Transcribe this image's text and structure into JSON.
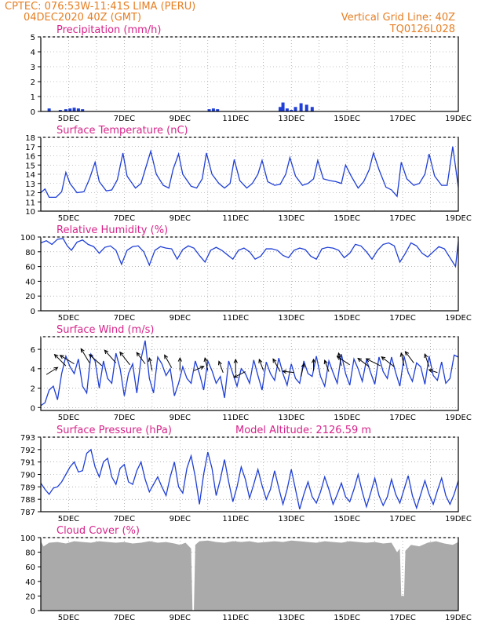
{
  "header": {
    "left_line1": "CPTEC:    076:53W-11:41S    LIMA (PERU)",
    "left_line2": "04DEC2020 40Z (GMT)",
    "right_line1": "Vertical Grid Line: 40Z",
    "right_line2": "TQ0126L028"
  },
  "colors": {
    "line": "#1f3fd6",
    "cloud": "#aaaaaa",
    "header": "#e67e22",
    "title": "#d6248a",
    "grid": "#888888"
  },
  "x_axis": {
    "labels": [
      "5DEC",
      "7DEC",
      "9DEC",
      "11DEC",
      "13DEC",
      "15DEC",
      "17DEC",
      "19DEC"
    ],
    "day_start": 4,
    "day_end": 19
  },
  "panels": [
    {
      "id": "precip",
      "title": "Precipitation (mm/h)",
      "yticks": [
        "0",
        "1",
        "2",
        "3",
        "4",
        "5"
      ],
      "ylim": [
        0,
        5
      ]
    },
    {
      "id": "temp",
      "title": "Surface Temperature (nC)",
      "yticks": [
        "10",
        "11",
        "12",
        "13",
        "14",
        "15",
        "16",
        "17",
        "18"
      ],
      "ylim": [
        10,
        18
      ]
    },
    {
      "id": "rh",
      "title": "Relative Humidity (%)",
      "yticks": [
        "0",
        "20",
        "40",
        "60",
        "80",
        "100"
      ],
      "ylim": [
        0,
        100
      ]
    },
    {
      "id": "wind",
      "title": "Surface Wind (m/s)",
      "yticks": [
        "0",
        "2",
        "4",
        "6"
      ],
      "ylim": [
        -0.3,
        7.3
      ]
    },
    {
      "id": "press",
      "title": "Surface Pressure (hPa)",
      "subtitle": "Model Altitude: 2126.59 m",
      "yticks": [
        "787",
        "788",
        "789",
        "790",
        "791",
        "792",
        "793"
      ],
      "ylim": [
        787,
        793
      ]
    },
    {
      "id": "cloud",
      "title": "Cloud Cover (%)",
      "yticks": [
        "0",
        "20",
        "40",
        "60",
        "80",
        "100"
      ],
      "ylim": [
        0,
        100
      ]
    }
  ],
  "chart_data": [
    {
      "type": "bar",
      "title": "Precipitation (mm/h)",
      "ylim": [
        0,
        5
      ],
      "x": [
        4.3,
        4.7,
        4.9,
        5.05,
        5.2,
        5.35,
        5.5,
        10.05,
        10.2,
        10.35,
        12.6,
        12.7,
        12.85,
        13.0,
        13.15,
        13.35,
        13.55,
        13.75
      ],
      "values": [
        0.2,
        0.1,
        0.15,
        0.2,
        0.25,
        0.2,
        0.15,
        0.15,
        0.2,
        0.15,
        0.3,
        0.6,
        0.2,
        0.1,
        0.3,
        0.55,
        0.45,
        0.3
      ]
    },
    {
      "type": "line",
      "title": "Surface Temperature (nC)",
      "ylim": [
        10,
        18
      ],
      "x": [
        4.0,
        4.15,
        4.3,
        4.55,
        4.75,
        4.9,
        5.05,
        5.3,
        5.55,
        5.75,
        5.95,
        6.1,
        6.35,
        6.55,
        6.75,
        6.95,
        7.1,
        7.4,
        7.6,
        7.75,
        7.95,
        8.15,
        8.4,
        8.6,
        8.75,
        8.95,
        9.1,
        9.4,
        9.6,
        9.8,
        9.95,
        10.15,
        10.4,
        10.6,
        10.8,
        10.95,
        11.15,
        11.4,
        11.6,
        11.8,
        11.95,
        12.15,
        12.4,
        12.6,
        12.8,
        12.95,
        13.15,
        13.4,
        13.6,
        13.8,
        13.95,
        14.15,
        14.4,
        14.6,
        14.8,
        14.95,
        15.15,
        15.4,
        15.6,
        15.8,
        15.95,
        16.15,
        16.4,
        16.6,
        16.8,
        16.95,
        17.15,
        17.4,
        17.6,
        17.8,
        17.95,
        18.15,
        18.4,
        18.6,
        18.8,
        19.0
      ],
      "values": [
        12.0,
        12.4,
        11.5,
        11.5,
        12.1,
        14.2,
        13.0,
        12.0,
        12.1,
        13.5,
        15.3,
        13.2,
        12.2,
        12.3,
        13.4,
        16.3,
        13.8,
        12.5,
        13.0,
        14.5,
        16.5,
        14.0,
        12.8,
        12.5,
        14.5,
        16.2,
        14.0,
        12.7,
        12.5,
        13.5,
        16.3,
        14.0,
        13.0,
        12.5,
        13.0,
        15.6,
        13.3,
        12.5,
        13.0,
        14.0,
        15.5,
        13.2,
        12.8,
        12.9,
        14.0,
        15.8,
        13.8,
        12.8,
        13.0,
        13.5,
        15.5,
        13.5,
        13.3,
        13.2,
        13.0,
        15.0,
        13.8,
        12.5,
        13.2,
        14.5,
        16.3,
        14.5,
        12.6,
        12.3,
        11.6,
        15.3,
        13.5,
        12.8,
        13.0,
        14.0,
        16.2,
        13.8,
        12.8,
        12.8,
        17.0,
        12.6
      ]
    },
    {
      "type": "line",
      "title": "Relative Humidity (%)",
      "ylim": [
        0,
        100
      ],
      "x": [
        4.0,
        4.2,
        4.4,
        4.6,
        4.8,
        4.95,
        5.1,
        5.3,
        5.5,
        5.7,
        5.9,
        6.1,
        6.3,
        6.5,
        6.7,
        6.9,
        7.1,
        7.3,
        7.5,
        7.7,
        7.9,
        8.1,
        8.3,
        8.5,
        8.7,
        8.9,
        9.1,
        9.3,
        9.5,
        9.7,
        9.9,
        10.1,
        10.3,
        10.5,
        10.7,
        10.9,
        11.1,
        11.3,
        11.5,
        11.7,
        11.9,
        12.1,
        12.3,
        12.5,
        12.7,
        12.9,
        13.1,
        13.3,
        13.5,
        13.7,
        13.9,
        14.1,
        14.3,
        14.5,
        14.7,
        14.9,
        15.1,
        15.3,
        15.5,
        15.7,
        15.9,
        16.1,
        16.3,
        16.5,
        16.7,
        16.9,
        17.1,
        17.3,
        17.5,
        17.7,
        17.9,
        18.1,
        18.3,
        18.5,
        18.7,
        18.9,
        19.0
      ],
      "values": [
        92,
        95,
        90,
        97,
        98,
        88,
        82,
        93,
        96,
        90,
        87,
        78,
        86,
        88,
        82,
        63,
        82,
        87,
        88,
        80,
        62,
        82,
        87,
        85,
        84,
        70,
        83,
        88,
        85,
        75,
        66,
        82,
        86,
        82,
        76,
        70,
        82,
        85,
        80,
        70,
        74,
        84,
        84,
        82,
        75,
        72,
        82,
        85,
        83,
        74,
        70,
        84,
        86,
        85,
        82,
        72,
        78,
        90,
        88,
        80,
        70,
        82,
        90,
        92,
        88,
        66,
        78,
        92,
        88,
        78,
        73,
        80,
        87,
        84,
        72,
        60,
        94
      ]
    },
    {
      "type": "line",
      "title": "Surface Wind (m/s)",
      "ylim": [
        -0.3,
        7.3
      ],
      "x": [
        4.0,
        4.15,
        4.3,
        4.45,
        4.6,
        4.75,
        4.9,
        5.05,
        5.2,
        5.35,
        5.5,
        5.65,
        5.8,
        5.95,
        6.1,
        6.25,
        6.4,
        6.55,
        6.7,
        6.85,
        7.0,
        7.15,
        7.3,
        7.45,
        7.6,
        7.75,
        7.9,
        8.05,
        8.2,
        8.35,
        8.5,
        8.65,
        8.8,
        8.95,
        9.1,
        9.25,
        9.4,
        9.55,
        9.7,
        9.85,
        10.0,
        10.15,
        10.3,
        10.45,
        10.6,
        10.75,
        10.9,
        11.05,
        11.2,
        11.35,
        11.5,
        11.65,
        11.8,
        11.95,
        12.1,
        12.25,
        12.4,
        12.55,
        12.7,
        12.85,
        13.0,
        13.15,
        13.3,
        13.45,
        13.6,
        13.75,
        13.9,
        14.05,
        14.2,
        14.35,
        14.5,
        14.65,
        14.8,
        14.95,
        15.1,
        15.25,
        15.4,
        15.55,
        15.7,
        15.85,
        16.0,
        16.15,
        16.3,
        16.45,
        16.6,
        16.75,
        16.9,
        17.05,
        17.2,
        17.35,
        17.5,
        17.65,
        17.8,
        17.95,
        18.1,
        18.25,
        18.4,
        18.55,
        18.7,
        18.85,
        19.0
      ],
      "values": [
        0.2,
        0.5,
        1.8,
        2.2,
        0.8,
        3.5,
        5.3,
        4.2,
        3.5,
        5.0,
        2.2,
        1.5,
        5.5,
        4.8,
        2.0,
        4.8,
        3.0,
        2.5,
        5.6,
        4.0,
        1.2,
        3.5,
        4.5,
        1.5,
        5.0,
        6.9,
        3.0,
        1.5,
        5.2,
        4.5,
        3.3,
        4.0,
        1.2,
        2.5,
        4.2,
        3.0,
        2.5,
        4.8,
        3.5,
        1.8,
        4.8,
        3.8,
        2.5,
        3.2,
        1.0,
        4.8,
        3.5,
        2.2,
        4.0,
        3.5,
        2.5,
        4.9,
        3.3,
        1.8,
        4.7,
        3.5,
        2.8,
        5.1,
        3.5,
        2.3,
        4.5,
        3.0,
        2.5,
        4.8,
        3.5,
        3.2,
        5.3,
        3.2,
        2.2,
        4.8,
        3.6,
        2.5,
        5.5,
        3.5,
        2.3,
        5.0,
        4.0,
        2.7,
        4.9,
        3.6,
        2.4,
        5.2,
        3.7,
        3.0,
        5.2,
        3.6,
        2.2,
        5.3,
        3.6,
        2.7,
        4.6,
        4.2,
        2.4,
        5.3,
        3.3,
        2.8,
        4.7,
        2.5,
        3.0,
        5.4,
        5.2
      ],
      "vectors": [
        {
          "x": 4.2,
          "y": 3.4,
          "u": 0.8,
          "v": 0.5
        },
        {
          "x": 4.9,
          "y": 4.3,
          "u": -0.8,
          "v": 0.8
        },
        {
          "x": 5.2,
          "y": 4.5,
          "u": -1.0,
          "v": 0.6
        },
        {
          "x": 5.75,
          "y": 4.6,
          "u": -0.6,
          "v": 1.0
        },
        {
          "x": 6.2,
          "y": 4.3,
          "u": -0.9,
          "v": 0.8
        },
        {
          "x": 6.7,
          "y": 4.6,
          "u": -0.8,
          "v": 0.9
        },
        {
          "x": 7.2,
          "y": 4.4,
          "u": -0.7,
          "v": 0.9
        },
        {
          "x": 7.75,
          "y": 4.5,
          "u": -0.6,
          "v": 0.8
        },
        {
          "x": 8.0,
          "y": 3.8,
          "u": -0.2,
          "v": 0.9
        },
        {
          "x": 8.7,
          "y": 4.1,
          "u": -0.5,
          "v": 0.9
        },
        {
          "x": 9.0,
          "y": 3.8,
          "u": 0.0,
          "v": 0.9
        },
        {
          "x": 9.5,
          "y": 3.8,
          "u": 0.7,
          "v": 0.3
        },
        {
          "x": 10.0,
          "y": 3.8,
          "u": -0.2,
          "v": 0.9
        },
        {
          "x": 10.55,
          "y": 3.6,
          "u": -0.3,
          "v": 0.8
        },
        {
          "x": 11.0,
          "y": 3.5,
          "u": 0.0,
          "v": 1.0
        },
        {
          "x": 11.35,
          "y": 3.7,
          "u": -0.8,
          "v": -0.4
        },
        {
          "x": 12.0,
          "y": 3.8,
          "u": -0.3,
          "v": 0.8
        },
        {
          "x": 12.6,
          "y": 3.7,
          "u": -0.5,
          "v": 0.9
        },
        {
          "x": 13.1,
          "y": 3.6,
          "u": -0.8,
          "v": 0.1
        },
        {
          "x": 13.35,
          "y": 3.2,
          "u": 0.2,
          "v": 0.9
        },
        {
          "x": 13.8,
          "y": 3.8,
          "u": 0.0,
          "v": 0.8
        },
        {
          "x": 14.35,
          "y": 3.7,
          "u": -0.3,
          "v": 0.8
        },
        {
          "x": 14.8,
          "y": 4.3,
          "u": -0.2,
          "v": 0.9
        },
        {
          "x": 15.1,
          "y": 4.4,
          "u": -0.9,
          "v": 0.6
        },
        {
          "x": 15.8,
          "y": 4.2,
          "u": -0.8,
          "v": 0.6
        },
        {
          "x": 16.2,
          "y": 4.3,
          "u": -1.0,
          "v": 0.5
        },
        {
          "x": 16.7,
          "y": 4.2,
          "u": -0.9,
          "v": 0.7
        },
        {
          "x": 17.05,
          "y": 4.3,
          "u": -0.2,
          "v": 0.9
        },
        {
          "x": 17.4,
          "y": 4.6,
          "u": -0.6,
          "v": 0.8
        },
        {
          "x": 17.95,
          "y": 4.2,
          "u": -0.3,
          "v": 0.9
        },
        {
          "x": 18.25,
          "y": 3.6,
          "u": -0.6,
          "v": 0.2
        }
      ]
    },
    {
      "type": "line",
      "title": "Surface Pressure (hPa)",
      "ylim": [
        787,
        793
      ],
      "x": [
        4.0,
        4.15,
        4.3,
        4.45,
        4.6,
        4.75,
        4.9,
        5.05,
        5.2,
        5.35,
        5.5,
        5.65,
        5.8,
        5.95,
        6.1,
        6.25,
        6.4,
        6.55,
        6.7,
        6.85,
        7.0,
        7.15,
        7.3,
        7.45,
        7.6,
        7.75,
        7.9,
        8.05,
        8.2,
        8.35,
        8.5,
        8.65,
        8.8,
        8.95,
        9.1,
        9.25,
        9.4,
        9.55,
        9.7,
        9.85,
        10.0,
        10.15,
        10.3,
        10.45,
        10.6,
        10.75,
        10.9,
        11.05,
        11.2,
        11.35,
        11.5,
        11.65,
        11.8,
        11.95,
        12.1,
        12.25,
        12.4,
        12.55,
        12.7,
        12.85,
        13.0,
        13.15,
        13.3,
        13.45,
        13.6,
        13.75,
        13.9,
        14.05,
        14.2,
        14.35,
        14.5,
        14.65,
        14.8,
        14.95,
        15.1,
        15.25,
        15.4,
        15.55,
        15.7,
        15.85,
        16.0,
        16.15,
        16.3,
        16.45,
        16.6,
        16.75,
        16.9,
        17.05,
        17.2,
        17.35,
        17.5,
        17.65,
        17.8,
        17.95,
        18.1,
        18.25,
        18.4,
        18.55,
        18.7,
        18.85,
        19.0
      ],
      "values": [
        789.3,
        788.8,
        788.4,
        788.9,
        789.0,
        789.4,
        790.0,
        790.6,
        791.0,
        790.2,
        790.3,
        791.7,
        792.0,
        790.6,
        789.8,
        791.0,
        791.3,
        789.8,
        789.2,
        790.5,
        790.8,
        789.4,
        789.2,
        790.3,
        791.0,
        789.6,
        788.6,
        789.2,
        789.8,
        789.0,
        788.3,
        789.8,
        791.0,
        789.0,
        788.5,
        790.5,
        791.5,
        789.8,
        787.6,
        790.0,
        791.8,
        790.5,
        788.3,
        789.6,
        791.2,
        789.4,
        787.8,
        789.0,
        790.6,
        789.6,
        788.1,
        789.2,
        790.4,
        789.1,
        788.0,
        788.8,
        790.3,
        788.9,
        787.6,
        788.8,
        790.4,
        788.8,
        787.2,
        788.4,
        789.4,
        788.2,
        787.7,
        788.6,
        789.8,
        788.8,
        787.6,
        788.4,
        789.3,
        788.2,
        787.8,
        788.8,
        790.0,
        788.6,
        787.4,
        788.5,
        789.7,
        788.3,
        787.5,
        788.2,
        789.6,
        788.4,
        787.7,
        788.8,
        789.9,
        788.3,
        787.3,
        788.4,
        789.5,
        788.4,
        787.6,
        788.7,
        789.7,
        788.3,
        787.6,
        788.4,
        789.5
      ]
    },
    {
      "type": "area",
      "title": "Cloud Cover (%)",
      "ylim": [
        0,
        100
      ],
      "x": [
        4.0,
        4.1,
        4.3,
        4.6,
        4.9,
        5.2,
        5.5,
        5.8,
        6.1,
        6.4,
        6.7,
        7.0,
        7.3,
        7.6,
        7.9,
        8.2,
        8.5,
        8.8,
        9.0,
        9.2,
        9.4,
        9.45,
        9.5,
        9.55,
        9.7,
        10.0,
        10.3,
        10.6,
        10.9,
        11.2,
        11.5,
        11.8,
        12.1,
        12.4,
        12.7,
        13.0,
        13.3,
        13.6,
        13.9,
        14.2,
        14.5,
        14.8,
        15.1,
        15.4,
        15.7,
        16.0,
        16.3,
        16.6,
        16.8,
        16.9,
        16.95,
        17.05,
        17.1,
        17.3,
        17.6,
        17.9,
        18.2,
        18.5,
        18.8,
        19.0
      ],
      "values": [
        95,
        88,
        93,
        94,
        92,
        95,
        94,
        93,
        95,
        94,
        93,
        94,
        92,
        93,
        95,
        93,
        94,
        92,
        90,
        93,
        85,
        0,
        0,
        90,
        95,
        96,
        94,
        93,
        95,
        94,
        95,
        93,
        94,
        95,
        94,
        96,
        95,
        94,
        93,
        95,
        94,
        93,
        95,
        94,
        93,
        94,
        92,
        93,
        80,
        85,
        20,
        20,
        82,
        90,
        88,
        93,
        95,
        92,
        90,
        94
      ]
    }
  ]
}
